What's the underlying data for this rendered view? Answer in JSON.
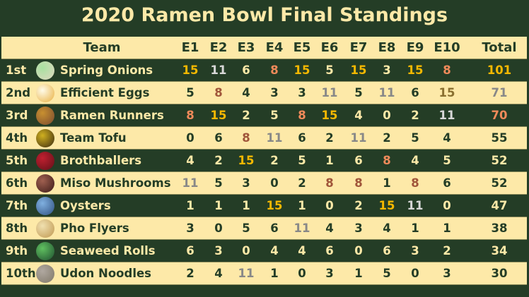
{
  "title": "2020 Ramen Bowl Final Standings",
  "headers": {
    "team": "Team",
    "events": [
      "E1",
      "E2",
      "E3",
      "E4",
      "E5",
      "E6",
      "E7",
      "E8",
      "E9",
      "E10"
    ],
    "total": "Total"
  },
  "colors": {
    "background": "#243d26",
    "light_row": "#fde9a8",
    "gold": "#f5b800",
    "silver": "#d8d8d8",
    "bronze": "#f08a5a"
  },
  "rows": [
    {
      "rank": "1st",
      "team": "Spring Onions",
      "scores": [
        15,
        11,
        6,
        8,
        15,
        5,
        15,
        3,
        15,
        8
      ],
      "total": "101",
      "marble": [
        "#a8e0a0",
        "#e0d8c0"
      ]
    },
    {
      "rank": "2nd",
      "team": "Efficient Eggs",
      "scores": [
        5,
        8,
        4,
        3,
        3,
        11,
        5,
        11,
        6,
        15
      ],
      "total": "71",
      "marble": [
        "#fffbe8",
        "#e8b040"
      ]
    },
    {
      "rank": "3rd",
      "team": "Ramen Runners",
      "scores": [
        8,
        15,
        2,
        5,
        8,
        15,
        4,
        0,
        2,
        11
      ],
      "total": "70",
      "marble": [
        "#c89030",
        "#7a4a30"
      ]
    },
    {
      "rank": "4th",
      "team": "Team Tofu",
      "scores": [
        0,
        6,
        8,
        11,
        6,
        2,
        11,
        2,
        5,
        4
      ],
      "total": "55",
      "marble": [
        "#d0b020",
        "#3a2a10"
      ]
    },
    {
      "rank": "5th",
      "team": "Brothballers",
      "scores": [
        4,
        2,
        15,
        2,
        5,
        1,
        6,
        8,
        4,
        5
      ],
      "total": "52",
      "marble": [
        "#c02030",
        "#601018"
      ]
    },
    {
      "rank": "6th",
      "team": "Miso Mushrooms",
      "scores": [
        11,
        5,
        3,
        0,
        2,
        8,
        8,
        1,
        8,
        6
      ],
      "total": "52",
      "marble": [
        "#a06050",
        "#3a1a18"
      ]
    },
    {
      "rank": "7th",
      "team": "Oysters",
      "scores": [
        1,
        1,
        1,
        15,
        1,
        0,
        2,
        15,
        11,
        0
      ],
      "total": "47",
      "marble": [
        "#80b0e0",
        "#305080"
      ]
    },
    {
      "rank": "8th",
      "team": "Pho Flyers",
      "scores": [
        3,
        0,
        5,
        6,
        11,
        4,
        3,
        4,
        1,
        1
      ],
      "total": "38",
      "marble": [
        "#f0e0b0",
        "#c09850"
      ]
    },
    {
      "rank": "9th",
      "team": "Seaweed Rolls",
      "scores": [
        6,
        3,
        0,
        4,
        4,
        6,
        0,
        6,
        3,
        2
      ],
      "total": "34",
      "marble": [
        "#60c060",
        "#205030"
      ]
    },
    {
      "rank": "10th",
      "team": "Udon Noodles",
      "scores": [
        2,
        4,
        11,
        1,
        0,
        3,
        1,
        5,
        0,
        3
      ],
      "total": "30",
      "marble": [
        "#b0a8a0",
        "#807868"
      ]
    }
  ]
}
